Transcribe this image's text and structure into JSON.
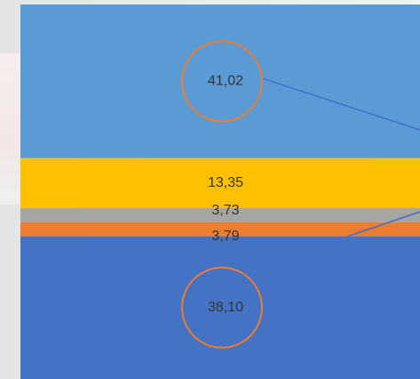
{
  "chart_data": {
    "type": "bar",
    "orientation": "vertical",
    "stacked": true,
    "categories": [
      ""
    ],
    "series": [
      {
        "values": [
          38.1
        ],
        "label": "38,10",
        "color": "#4472c4",
        "highlighted": true
      },
      {
        "values": [
          3.79
        ],
        "label": "3,79",
        "color": "#ed7d31",
        "highlighted": false
      },
      {
        "values": [
          3.73
        ],
        "label": "3,73",
        "color": "#a5a5a5",
        "highlighted": false
      },
      {
        "values": [
          13.35
        ],
        "label": "13,35",
        "color": "#ffc000",
        "highlighted": false
      },
      {
        "values": [
          41.02
        ],
        "label": "41,02",
        "color": "#5b9bd5",
        "highlighted": true
      }
    ],
    "ylim": [
      0,
      100
    ],
    "grid": false,
    "legend": "none",
    "title": "",
    "xlabel": "",
    "ylabel": ""
  },
  "colors": {
    "highlight_circle": "#ed7d31",
    "leader_line": "#4472c4"
  }
}
